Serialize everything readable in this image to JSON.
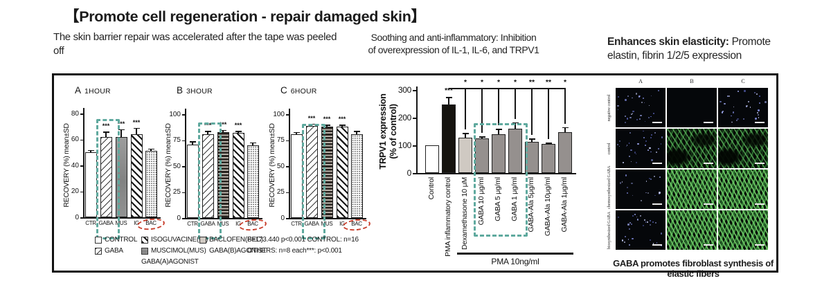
{
  "title": "【Promote cell regeneration - repair damaged skin】",
  "headings": {
    "barrier": "The skin barrier repair was accelerated after the tape was peeled\noff",
    "soothing": "Soothing and anti-inflammatory:  Inhibition\nof overexpression of IL-1, IL-6, and TRPV1",
    "elasticity_bold": "Enhances skin elasticity:",
    "elasticity_rest": " Promote elastin, fibrin 1/2/5 expression"
  },
  "chart_data": [
    {
      "type": "bar",
      "id": "recovery_1hour",
      "panel": "A",
      "time_label": "1HOUR",
      "ylabel": "RECOVERY  (%)  mean±SD",
      "categories": [
        "CTR",
        "GABA",
        "MUS",
        "IG",
        "BAC"
      ],
      "values": [
        50,
        62,
        62,
        64,
        51
      ],
      "errors": [
        2,
        4,
        6,
        5,
        2
      ],
      "sig": [
        "",
        "***",
        "***",
        "***",
        ""
      ],
      "ylim": [
        0,
        80
      ],
      "yticks": [
        0,
        20,
        40,
        60,
        80
      ],
      "patterns": [
        "plain",
        "hatch-fwd",
        "solid-gray",
        "hatch-back",
        "dots"
      ],
      "highlight_category": "GABA",
      "circled_category": "BAC"
    },
    {
      "type": "bar",
      "id": "recovery_3hour",
      "panel": "B",
      "time_label": "3HOUR",
      "ylabel": "RECOVERY  (%)  mean±SD",
      "categories": [
        "CTR",
        "GABA",
        "MUS",
        "IG",
        "BAC"
      ],
      "values": [
        71,
        81,
        83,
        82,
        70
      ],
      "errors": [
        3,
        3,
        2,
        2,
        3
      ],
      "sig": [
        "",
        "***",
        "***",
        "***",
        ""
      ],
      "ylim": [
        0,
        100
      ],
      "yticks": [
        0,
        25,
        50,
        75,
        100
      ],
      "patterns": [
        "plain",
        "hatch-fwd",
        "hstripe",
        "hatch-back",
        "dots"
      ],
      "highlight_category": "GABA",
      "circled_category": "BAC"
    },
    {
      "type": "bar",
      "id": "recovery_6hour",
      "panel": "C",
      "time_label": "6HOUR",
      "ylabel": "RECOVERY  (%)  mean±SD",
      "categories": [
        "CTR",
        "GABA",
        "MUS",
        "IG",
        "BAC"
      ],
      "values": [
        81,
        89,
        88,
        88,
        81
      ],
      "errors": [
        2,
        2,
        2,
        2,
        3
      ],
      "sig": [
        "",
        "***",
        "***",
        "***",
        ""
      ],
      "ylim": [
        0,
        100
      ],
      "yticks": [
        0,
        25,
        50,
        75,
        100
      ],
      "patterns": [
        "plain",
        "hatch-fwd",
        "hstripe",
        "hatch-back",
        "dots"
      ],
      "highlight_category": "GABA",
      "circled_category": "BAC"
    },
    {
      "type": "bar",
      "id": "trpv1_expression",
      "ylabel_line1": "TRPV1 expression",
      "ylabel_line2": "(% of control)",
      "categories": [
        "Control",
        "PMA inflammatory control",
        "Dexamethasone 10 μM",
        "GABA 10 μg/ml",
        "GABA 5 μg/ml",
        "GABA 1 μg/ml",
        "GABA-Ala 5μg/ml",
        "GABA-Ala 10μg/ml",
        "GABA-Ala 1μg/ml"
      ],
      "values": [
        100,
        247,
        128,
        124,
        139,
        160,
        112,
        104,
        148
      ],
      "errors": [
        0,
        28,
        16,
        8,
        21,
        23,
        12,
        6,
        18
      ],
      "bar_sig": [
        "",
        "***",
        "",
        "",
        "",
        "",
        "",
        "",
        ""
      ],
      "bracket_sig": [
        "*",
        "*",
        "*",
        "*",
        "**",
        "**",
        "*"
      ],
      "ylim": [
        0,
        300
      ],
      "yticks": [
        0,
        100,
        200,
        300
      ],
      "colors": [
        "white",
        "black",
        "light-gray",
        "gray",
        "gray",
        "gray",
        "gray",
        "gray",
        "gray"
      ],
      "group_label": "PMA  10ng/ml",
      "group_members": [
        "Dexamethasone 10 μM",
        "GABA 10 μg/ml",
        "GABA 5 μg/ml",
        "GABA 1 μg/ml",
        "GABA-Ala 5μg/ml",
        "GABA-Ala 10μg/ml",
        "GABA-Ala 1μg/ml"
      ],
      "highlight_categories": [
        "GABA 10 μg/ml",
        "GABA 5 μg/ml",
        "GABA 1 μg/ml"
      ]
    }
  ],
  "legend": {
    "items": [
      {
        "label": "CONTROL",
        "swatch": "plain"
      },
      {
        "label": "GABA",
        "swatch": "hatch-fwd"
      },
      {
        "label": "ISOGUVACINE(IG)",
        "swatch": "hatch-back"
      },
      {
        "label": "MUSCIMOL(MUS)",
        "swatch": "solid-gray"
      },
      {
        "label": "GABA(A)AGONIST",
        "swatch": null
      },
      {
        "label": "BACLOFEN(BEC)",
        "swatch": "light-gray"
      },
      {
        "label": "GABA(B)AGONIST",
        "swatch": null
      }
    ]
  },
  "stats": {
    "line1": "F=173.440  p<0.001  CONTROL:  n=16",
    "line2": "OTHERS:  n=8 each***:  p<0.001"
  },
  "microscopy": {
    "column_headers": [
      "A",
      "B",
      "C"
    ],
    "rows": [
      {
        "label": "negative control",
        "cells": [
          "nuclei",
          "blank",
          "nuclei"
        ]
      },
      {
        "label": "control",
        "cells": [
          "nuclei",
          "fibers-medium",
          "fibers-medium"
        ]
      },
      {
        "label": "chemosynthesized GABA",
        "cells": [
          "nuclei-sparse",
          "fibers-dense",
          "fibers-dense"
        ]
      },
      {
        "label": "biosynthesized GABA",
        "cells": [
          "nuclei",
          "fibers-dense",
          "fibers-dense"
        ]
      }
    ],
    "caption": "GABA promotes fibroblast synthesis of elastic fibers"
  },
  "colors": {
    "highlight_teal": "#5FA99E",
    "circle_red": "#C8402E",
    "bar_gray": "#95908E",
    "bar_light_gray": "#CFC9C2",
    "bar_black": "#15130F",
    "fiber_green": "#4A9B55"
  }
}
